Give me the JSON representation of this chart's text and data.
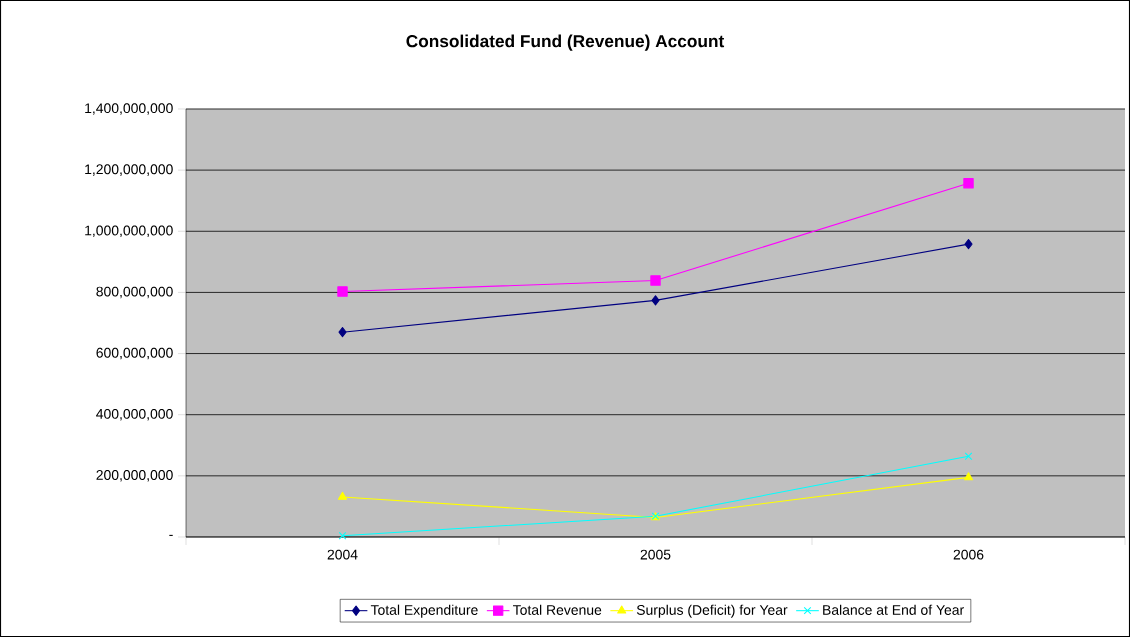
{
  "chart_data": {
    "type": "line",
    "title": "Consolidated Fund (Revenue) Account",
    "categories": [
      "2004",
      "2005",
      "2006"
    ],
    "series": [
      {
        "name": "Total Expenditure",
        "color": "#000080",
        "marker": "diamond",
        "values": [
          670000000,
          774000000,
          958000000
        ]
      },
      {
        "name": "Total Revenue",
        "color": "#ff00ff",
        "marker": "square",
        "values": [
          803000000,
          839000000,
          1157000000
        ]
      },
      {
        "name": "Surplus (Deficit) for Year",
        "color": "#ffff00",
        "marker": "triangle",
        "values": [
          131000000,
          64000000,
          195000000
        ]
      },
      {
        "name": "Balance at End of Year",
        "color": "#00ffff",
        "marker": "cross",
        "values": [
          4000000,
          68000000,
          264000000
        ]
      }
    ],
    "ylim": [
      0,
      1400000000
    ],
    "yticks": [
      {
        "value": 0,
        "label": "-"
      },
      {
        "value": 200000000,
        "label": "200,000,000"
      },
      {
        "value": 400000000,
        "label": "400,000,000"
      },
      {
        "value": 600000000,
        "label": "600,000,000"
      },
      {
        "value": 800000000,
        "label": "800,000,000"
      },
      {
        "value": 1000000000,
        "label": "1,000,000,000"
      },
      {
        "value": 1200000000,
        "label": "1,200,000,000"
      },
      {
        "value": 1400000000,
        "label": "1,400,000,000"
      }
    ],
    "grid": "y",
    "legend": "bottom"
  }
}
